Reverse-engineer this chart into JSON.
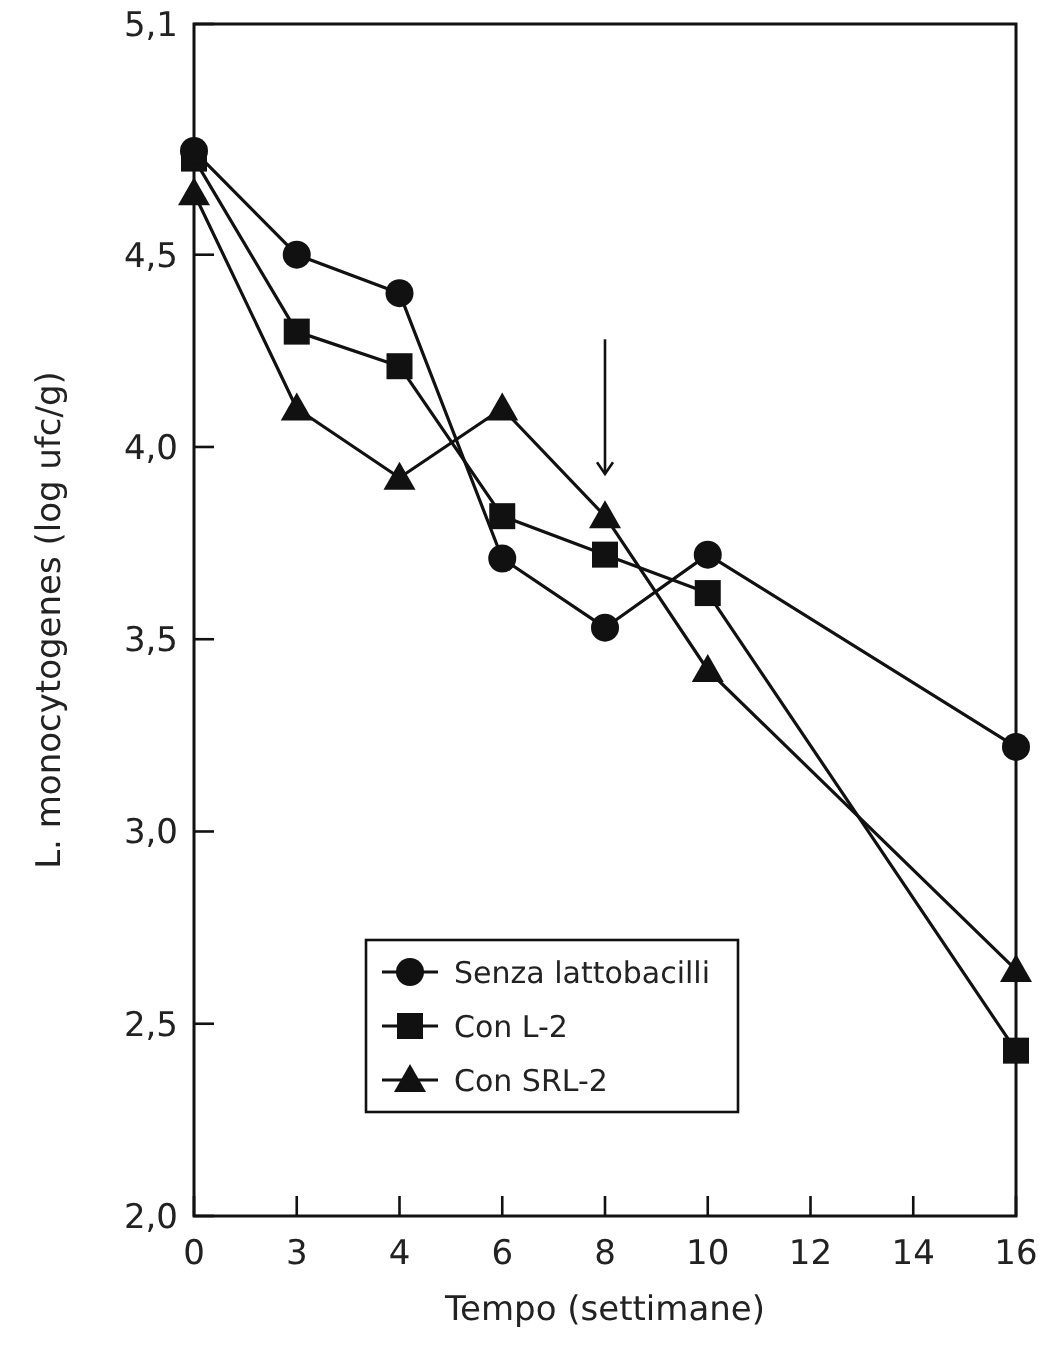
{
  "chart_data": {
    "type": "line",
    "xlabel": "Tempo (settimane)",
    "ylabel": "L. monocytogenes (log ufc/g)",
    "categories": [
      "0",
      "3",
      "4",
      "6",
      "8",
      "10",
      "12",
      "14",
      "16"
    ],
    "ylim": [
      2.0,
      5.1
    ],
    "yticks": [
      {
        "value": 2.0,
        "label": "2,0"
      },
      {
        "value": 2.5,
        "label": "2,5"
      },
      {
        "value": 3.0,
        "label": "3,0"
      },
      {
        "value": 3.5,
        "label": "3,5"
      },
      {
        "value": 4.0,
        "label": "4,0"
      },
      {
        "value": 4.5,
        "label": "4,5"
      },
      {
        "value": 5.1,
        "label": "5,1"
      }
    ],
    "legend": "bottom left",
    "grid": false,
    "line_style": "solid",
    "series": [
      {
        "name": "Senza lattobacilli",
        "color": "#111111",
        "marker": "circle",
        "x": [
          "0",
          "3",
          "4",
          "6",
          "8",
          "10",
          "16"
        ],
        "values": [
          4.77,
          4.5,
          4.4,
          3.71,
          3.53,
          3.72,
          3.22
        ]
      },
      {
        "name": "Con L-2",
        "color": "#111111",
        "marker": "square",
        "x": [
          "0",
          "3",
          "4",
          "6",
          "8",
          "10",
          "16"
        ],
        "values": [
          4.75,
          4.3,
          4.21,
          3.82,
          3.72,
          3.62,
          2.43
        ]
      },
      {
        "name": "Con SRL-2",
        "color": "#111111",
        "marker": "triangle",
        "x": [
          "0",
          "3",
          "4",
          "6",
          "8",
          "10",
          "16"
        ],
        "values": [
          4.66,
          4.1,
          3.92,
          4.1,
          3.82,
          3.42,
          2.64
        ]
      }
    ]
  }
}
